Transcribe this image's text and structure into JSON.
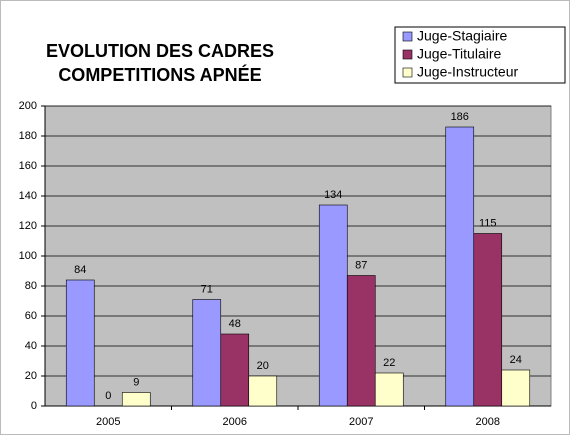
{
  "chart_data": {
    "type": "bar",
    "title": [
      "EVOLUTION DES CADRES",
      "COMPETITIONS APNÉE"
    ],
    "categories": [
      "2005",
      "2006",
      "2007",
      "2008"
    ],
    "series": [
      {
        "name": "Juge-Stagiaire",
        "color": "#9999ff",
        "values": [
          84,
          71,
          134,
          186
        ]
      },
      {
        "name": "Juge-Titulaire",
        "color": "#993366",
        "values": [
          0,
          48,
          87,
          115
        ]
      },
      {
        "name": "Juge-Instructeur",
        "color": "#ffffcc",
        "values": [
          9,
          20,
          22,
          24
        ]
      }
    ],
    "ylim": [
      0,
      200
    ],
    "yticks": [
      0,
      20,
      40,
      60,
      80,
      100,
      120,
      140,
      160,
      180,
      200
    ],
    "grid": true,
    "legend": "top-right",
    "plot_background": "#c0c0c0"
  }
}
